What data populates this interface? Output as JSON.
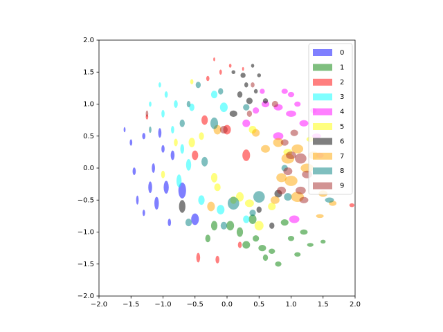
{
  "chart_data": {
    "type": "ellipse-scatter",
    "alpha": 0.5,
    "legend": "upper right",
    "xlim": [
      -2,
      2
    ],
    "ylim": [
      -2,
      2
    ],
    "xticks": [
      {
        "value": -2,
        "label": "−2.0"
      },
      {
        "value": -1.5,
        "label": "−1.5"
      },
      {
        "value": -1,
        "label": "−1.0"
      },
      {
        "value": -0.5,
        "label": "−0.5"
      },
      {
        "value": 0,
        "label": "0.0"
      },
      0.5,
      {
        "value": 1,
        "label": "1.0"
      },
      1.5,
      {
        "value": 2,
        "label": "2.0"
      }
    ],
    "yticks": [
      {
        "value": -2,
        "label": "−2.0"
      },
      {
        "value": -1.5,
        "label": "−1.5"
      },
      {
        "value": -1,
        "label": "−1.0"
      },
      {
        "value": -0.5,
        "label": "−0.5"
      },
      {
        "value": 0,
        "label": "0.0"
      },
      0.5,
      {
        "value": 1,
        "label": "1.0"
      },
      1.5,
      {
        "value": 2,
        "label": "2.0"
      }
    ],
    "series": [
      {
        "name": "0",
        "color": "blue",
        "x": [
          -1.6,
          -1.5,
          -1.45,
          -1.4,
          -1.3,
          -1.2,
          -1.15,
          -1.1,
          -1.0,
          -0.95,
          -0.9,
          -0.85,
          -0.7,
          -0.5,
          -1.3,
          -1.05
        ],
        "y": [
          0.6,
          0.4,
          -0.05,
          -0.5,
          0.5,
          -0.3,
          0.0,
          -0.55,
          0.3,
          -0.3,
          -0.85,
          0.2,
          -0.35,
          -0.8,
          -0.7,
          0.55
        ],
        "widths": [
          0.03,
          0.04,
          0.05,
          0.04,
          0.05,
          0.06,
          0.05,
          0.07,
          0.05,
          0.08,
          0.05,
          0.06,
          0.12,
          0.12,
          0.04,
          0.05
        ],
        "heights": [
          0.08,
          0.1,
          0.12,
          0.14,
          0.1,
          0.18,
          0.15,
          0.2,
          0.12,
          0.2,
          0.12,
          0.15,
          0.25,
          0.18,
          0.1,
          0.15
        ]
      },
      {
        "name": "1",
        "color": "green",
        "x": [
          0.05,
          0.2,
          0.3,
          0.45,
          0.55,
          0.7,
          0.8,
          0.9,
          1.0,
          1.1,
          1.2,
          1.3,
          1.5,
          0.6,
          -0.3,
          -0.2,
          0.4
        ],
        "y": [
          -0.9,
          -1.0,
          -1.2,
          -1.1,
          -1.25,
          -1.3,
          -1.5,
          -0.85,
          -1.1,
          -1.35,
          -1.0,
          -1.2,
          -1.15,
          -1.4,
          -1.1,
          -0.9,
          -0.8
        ],
        "widths": [
          0.12,
          0.1,
          0.12,
          0.1,
          0.12,
          0.1,
          0.1,
          0.12,
          0.1,
          0.1,
          0.12,
          0.1,
          0.08,
          0.08,
          0.08,
          0.1,
          0.12
        ],
        "heights": [
          0.15,
          0.15,
          0.12,
          0.1,
          0.1,
          0.08,
          0.08,
          0.1,
          0.08,
          0.07,
          0.08,
          0.06,
          0.06,
          0.1,
          0.12,
          0.15,
          0.15
        ]
      },
      {
        "name": "2",
        "color": "red",
        "x": [
          -0.2,
          -0.1,
          0.05,
          -0.3,
          0.25,
          -0.35,
          0.0,
          0.3,
          -0.5,
          -0.45,
          -0.15,
          1.95,
          -1.25,
          0.2
        ],
        "y": [
          1.7,
          1.5,
          1.6,
          1.4,
          1.55,
          0.75,
          0.6,
          0.2,
          0.2,
          -1.4,
          -1.43,
          -0.58,
          0.8,
          -1.2
        ],
        "widths": [
          0.03,
          0.04,
          0.04,
          0.05,
          0.03,
          0.1,
          0.12,
          0.12,
          0.1,
          0.06,
          0.06,
          0.08,
          0.04,
          0.06
        ],
        "heights": [
          0.06,
          0.08,
          0.06,
          0.08,
          0.06,
          0.15,
          0.15,
          0.18,
          0.15,
          0.15,
          0.12,
          0.06,
          0.08,
          0.1
        ]
      },
      {
        "name": "3",
        "color": "cyan",
        "x": [
          -1.05,
          -0.95,
          -1.2,
          -1.0,
          -0.8,
          -0.85,
          -0.7,
          -0.6,
          -0.75,
          -0.4,
          -0.1,
          -0.05,
          -0.2,
          0.3,
          -0.55
        ],
        "y": [
          1.3,
          1.15,
          1.0,
          0.85,
          1.0,
          0.6,
          0.3,
          0.05,
          -0.2,
          -0.5,
          -0.65,
          0.95,
          1.15,
          -0.8,
          0.95
        ],
        "widths": [
          0.04,
          0.05,
          0.04,
          0.05,
          0.06,
          0.05,
          0.06,
          0.08,
          0.08,
          0.1,
          0.12,
          0.12,
          0.1,
          0.1,
          0.08
        ],
        "heights": [
          0.08,
          0.1,
          0.08,
          0.12,
          0.12,
          0.12,
          0.15,
          0.18,
          0.2,
          0.15,
          0.15,
          0.15,
          0.12,
          0.12,
          0.12
        ]
      },
      {
        "name": "4",
        "color": "magenta",
        "x": [
          0.45,
          0.6,
          0.8,
          0.9,
          1.0,
          1.1,
          1.2,
          1.35,
          1.4,
          1.0,
          0.8,
          0.3,
          1.05,
          1.45,
          0.55
        ],
        "y": [
          0.9,
          1.0,
          0.95,
          1.2,
          0.85,
          1.0,
          0.7,
          0.9,
          0.5,
          1.15,
          0.5,
          0.7,
          -0.8,
          0.2,
          1.2
        ],
        "widths": [
          0.1,
          0.12,
          0.14,
          0.1,
          0.16,
          0.1,
          0.14,
          0.1,
          0.14,
          0.1,
          0.16,
          0.12,
          0.16,
          0.12,
          0.08
        ],
        "heights": [
          0.1,
          0.1,
          0.1,
          0.08,
          0.1,
          0.08,
          0.1,
          0.08,
          0.08,
          0.08,
          0.12,
          0.12,
          0.12,
          0.08,
          0.08
        ]
      },
      {
        "name": "5",
        "color": "yellow",
        "x": [
          -0.55,
          -0.2,
          -0.15,
          0.2,
          0.35,
          0.5,
          0.7,
          1.3,
          0.4,
          -0.4,
          -0.8,
          -0.55,
          -1.0,
          0.1,
          0.95
        ],
        "y": [
          0.4,
          -0.15,
          -0.3,
          -0.45,
          -0.55,
          -0.9,
          -0.6,
          0.45,
          0.6,
          0.5,
          0.4,
          1.35,
          -0.1,
          -0.5,
          0.25
        ],
        "widths": [
          0.1,
          0.1,
          0.1,
          0.12,
          0.14,
          0.14,
          0.12,
          0.12,
          0.12,
          0.08,
          0.06,
          0.05,
          0.06,
          0.1,
          0.14
        ],
        "heights": [
          0.15,
          0.15,
          0.12,
          0.15,
          0.12,
          0.15,
          0.12,
          0.08,
          0.12,
          0.12,
          0.12,
          0.08,
          0.12,
          0.12,
          0.1
        ]
      },
      {
        "name": "6",
        "color": "black",
        "x": [
          0.1,
          0.25,
          0.4,
          0.5,
          0.3,
          0.45,
          0.6,
          0.35,
          0.1,
          -0.7,
          0.8,
          0.5,
          0.7,
          0.2
        ],
        "y": [
          1.5,
          1.45,
          1.6,
          1.45,
          1.3,
          1.2,
          1.05,
          1.05,
          0.85,
          -0.6,
          -0.4,
          -0.65,
          -0.9,
          1.15
        ],
        "widths": [
          0.06,
          0.08,
          0.05,
          0.06,
          0.06,
          0.06,
          0.08,
          0.1,
          0.12,
          0.1,
          0.12,
          0.08,
          0.08,
          0.08
        ],
        "heights": [
          0.06,
          0.08,
          0.06,
          0.06,
          0.08,
          0.07,
          0.08,
          0.1,
          0.1,
          0.2,
          0.12,
          0.1,
          0.1,
          0.1
        ]
      },
      {
        "name": "7",
        "color": "orange",
        "x": [
          0.6,
          0.8,
          0.95,
          1.1,
          1.25,
          1.35,
          1.0,
          1.1,
          0.85,
          1.5,
          1.45,
          1.65,
          0.75,
          -0.15,
          -0.25,
          0.45
        ],
        "y": [
          0.3,
          0.4,
          0.15,
          0.3,
          0.0,
          0.2,
          -0.2,
          -0.45,
          -0.15,
          -0.4,
          -0.75,
          -0.55,
          -0.5,
          0.6,
          -0.6,
          0.55
        ],
        "widths": [
          0.14,
          0.16,
          0.2,
          0.18,
          0.2,
          0.16,
          0.2,
          0.2,
          0.16,
          0.14,
          0.12,
          0.12,
          0.14,
          0.12,
          0.12,
          0.12
        ],
        "heights": [
          0.12,
          0.14,
          0.16,
          0.14,
          0.14,
          0.12,
          0.16,
          0.16,
          0.14,
          0.1,
          0.06,
          0.08,
          0.12,
          0.15,
          0.15,
          0.12
        ]
      },
      {
        "name": "8",
        "color": "teal",
        "x": [
          -0.45,
          -0.6,
          -0.7,
          -0.35,
          -0.1,
          -0.2,
          0.1,
          0.5,
          0.4,
          0.9,
          0.95,
          -0.6,
          0.3,
          -0.05,
          1.6,
          -1.2
        ],
        "y": [
          1.3,
          1.0,
          0.7,
          0.1,
          1.2,
          0.7,
          -0.55,
          -0.45,
          -0.7,
          0.0,
          -0.45,
          -0.85,
          0.95,
          -0.9,
          -0.5,
          0.6
        ],
        "widths": [
          0.08,
          0.06,
          0.08,
          0.1,
          0.08,
          0.12,
          0.18,
          0.18,
          0.1,
          0.1,
          0.12,
          0.1,
          0.1,
          0.1,
          0.14,
          0.04
        ],
        "heights": [
          0.1,
          0.1,
          0.12,
          0.15,
          0.1,
          0.18,
          0.2,
          0.18,
          0.1,
          0.1,
          0.12,
          0.12,
          0.1,
          0.12,
          0.08,
          0.1
        ]
      },
      {
        "name": "9",
        "color": "brown",
        "x": [
          0.75,
          -0.05,
          0.9,
          1.0,
          1.15,
          1.25,
          1.15,
          0.85,
          0.95,
          1.05,
          0.4,
          0.35,
          1.2,
          -1.25
        ],
        "y": [
          1.0,
          0.6,
          0.4,
          0.2,
          0.15,
          -0.1,
          -0.35,
          -0.35,
          -0.05,
          0.55,
          1.3,
          0.85,
          -0.5,
          0.85
        ],
        "widths": [
          0.1,
          0.12,
          0.12,
          0.16,
          0.18,
          0.16,
          0.16,
          0.14,
          0.14,
          0.12,
          0.06,
          0.08,
          0.14,
          0.04
        ],
        "heights": [
          0.1,
          0.12,
          0.1,
          0.12,
          0.16,
          0.12,
          0.12,
          0.12,
          0.12,
          0.1,
          0.08,
          0.1,
          0.1,
          0.1
        ]
      }
    ]
  }
}
